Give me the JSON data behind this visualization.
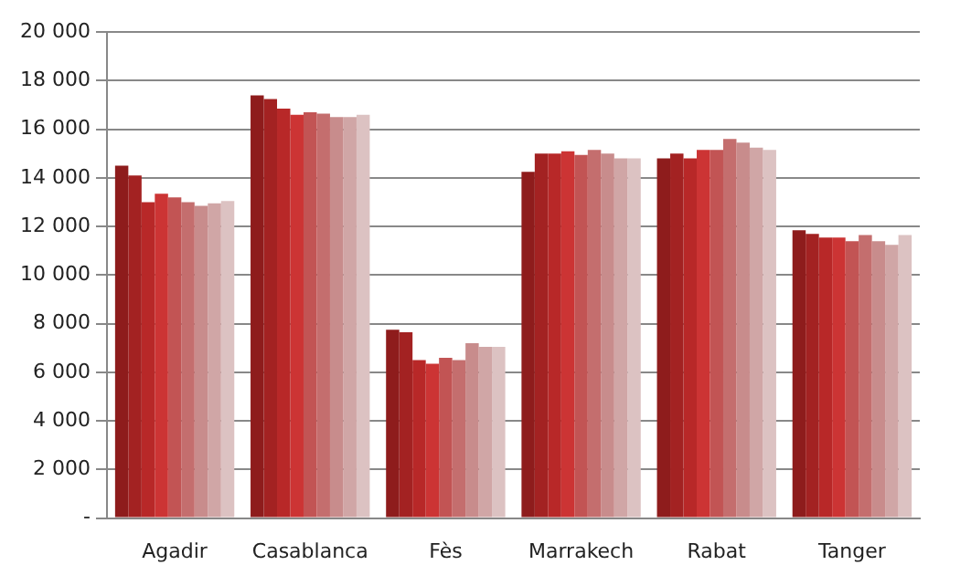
{
  "chart_data": {
    "type": "bar",
    "categories": [
      "Agadir",
      "Casablanca",
      "Fès",
      "Marrakech",
      "Rabat",
      "Tanger"
    ],
    "series": [
      {
        "color": "#8e1c1c",
        "values": [
          14500,
          17400,
          7750,
          14250,
          14800,
          11850
        ]
      },
      {
        "color": "#a32222",
        "values": [
          14100,
          17250,
          7650,
          15000,
          15000,
          11700
        ]
      },
      {
        "color": "#b82828",
        "values": [
          13000,
          16850,
          6500,
          15000,
          14800,
          11550
        ]
      },
      {
        "color": "#cc3434",
        "values": [
          13350,
          16600,
          6350,
          15100,
          15150,
          11550
        ]
      },
      {
        "color": "#c25454",
        "values": [
          13200,
          16700,
          6600,
          14950,
          15150,
          11400
        ]
      },
      {
        "color": "#c46e6e",
        "values": [
          13000,
          16650,
          6500,
          15150,
          15600,
          11650
        ]
      },
      {
        "color": "#c88c8c",
        "values": [
          12850,
          16500,
          7200,
          15000,
          15450,
          11400
        ]
      },
      {
        "color": "#d0a6a6",
        "values": [
          12950,
          16500,
          7050,
          14800,
          15250,
          11250
        ]
      },
      {
        "color": "#dcc2c2",
        "values": [
          13050,
          16600,
          7050,
          14800,
          15150,
          11650
        ]
      }
    ],
    "ylim": [
      0,
      20000
    ],
    "yticks": [
      {
        "value": 0,
        "label": "-"
      },
      {
        "value": 2000,
        "label": "2 000"
      },
      {
        "value": 4000,
        "label": "4 000"
      },
      {
        "value": 6000,
        "label": "6 000"
      },
      {
        "value": 8000,
        "label": "8 000"
      },
      {
        "value": 10000,
        "label": "10 000"
      },
      {
        "value": 12000,
        "label": "12 000"
      },
      {
        "value": 14000,
        "label": "14 000"
      },
      {
        "value": 16000,
        "label": "16 000"
      },
      {
        "value": 18000,
        "label": "18 000"
      },
      {
        "value": 20000,
        "label": "20 000"
      }
    ],
    "grid": "y",
    "legend": false
  }
}
